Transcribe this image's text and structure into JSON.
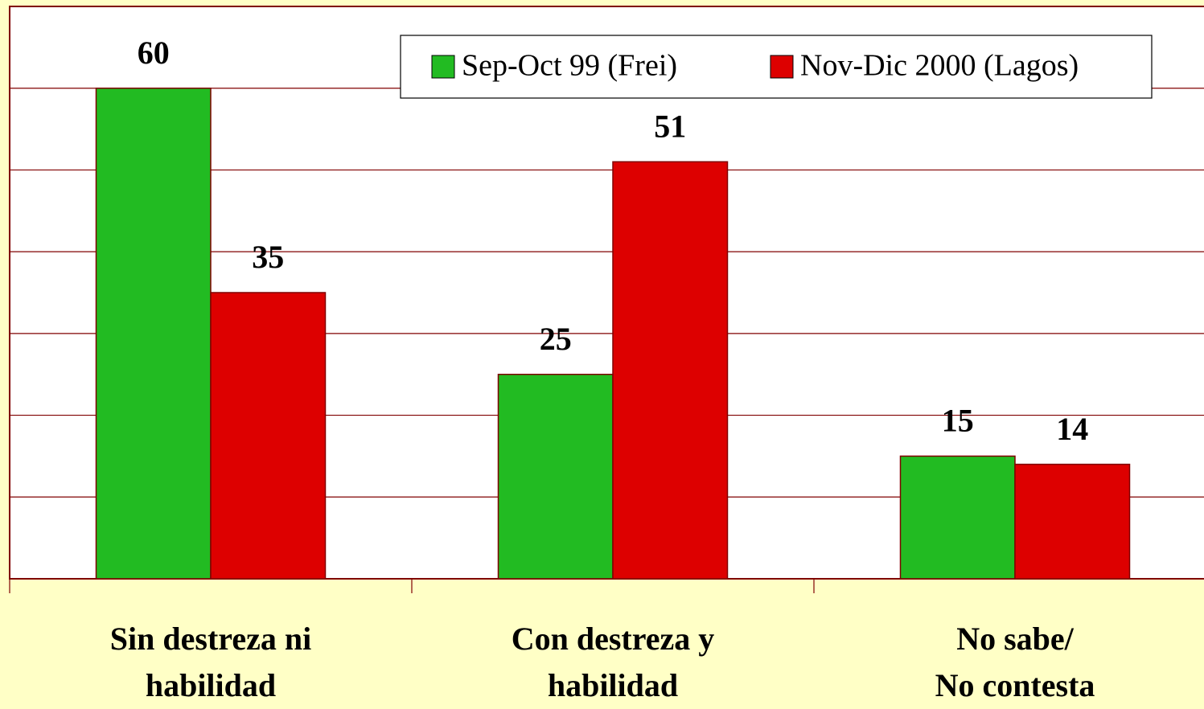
{
  "chart_data": {
    "type": "bar",
    "categories": [
      "Sin destreza ni\nhabilidad",
      "Con destreza y\nhabilidad",
      "No sabe/\nNo contesta"
    ],
    "series": [
      {
        "name": "Sep-Oct 99 (Frei)",
        "color": "#22bb22",
        "values": [
          60,
          25,
          15
        ]
      },
      {
        "name": "Nov-Dic 2000 (Lagos)",
        "color": "#dd0000",
        "values": [
          35,
          51,
          14
        ]
      }
    ],
    "ylim": [
      0,
      70
    ],
    "yticks": [
      0,
      10,
      20,
      30,
      40,
      50,
      60
    ],
    "grid": true,
    "legend": "top-right"
  }
}
